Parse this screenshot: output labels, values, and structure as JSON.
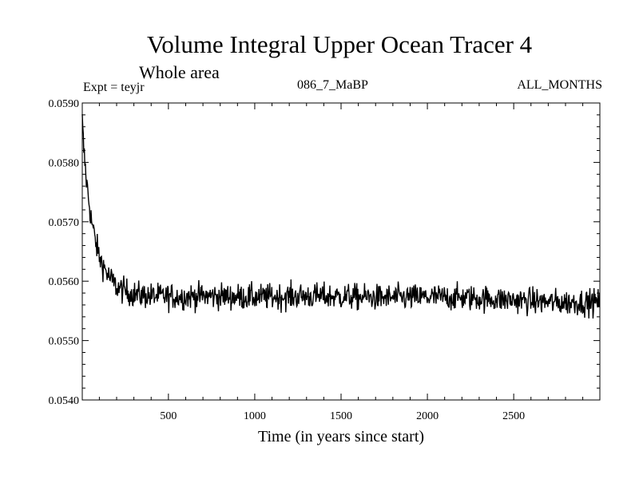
{
  "chart_data": {
    "type": "line",
    "title": "Volume Integral Upper Ocean Tracer 4",
    "subtitle": "Whole area",
    "annotations": {
      "experiment": "Expt = teyjr",
      "period": "086_7_MaBP",
      "months": "ALL_MONTHS"
    },
    "xlabel": "Time (in years since start)",
    "ylabel": "",
    "xlim": [
      1,
      2999
    ],
    "ylim": [
      0.054,
      0.059
    ],
    "x_ticks": [
      500,
      1000,
      1500,
      2000,
      2500
    ],
    "x_tick_labels": [
      "500",
      "1000",
      "1500",
      "2000",
      "2500"
    ],
    "y_ticks": [
      0.054,
      0.055,
      0.056,
      0.057,
      0.058,
      0.059
    ],
    "y_tick_labels": [
      "0.0540",
      "0.0550",
      "0.0560",
      "0.0570",
      "0.0580",
      "0.0590"
    ],
    "series": [
      {
        "name": "Volume integral",
        "x": [
          1,
          10,
          25,
          50,
          75,
          100,
          150,
          200,
          250,
          300,
          400,
          500,
          750,
          1000,
          1250,
          1500,
          1750,
          2000,
          2250,
          2500,
          2750,
          2999
        ],
        "values": [
          0.0587,
          0.0582,
          0.0577,
          0.0571,
          0.0567,
          0.0564,
          0.0561,
          0.0559,
          0.05583,
          0.05578,
          0.05575,
          0.05574,
          0.05575,
          0.05573,
          0.05575,
          0.05574,
          0.05572,
          0.05573,
          0.05572,
          0.05568,
          0.05564,
          0.05565
        ],
        "noise_amplitude": 0.0002
      }
    ]
  }
}
